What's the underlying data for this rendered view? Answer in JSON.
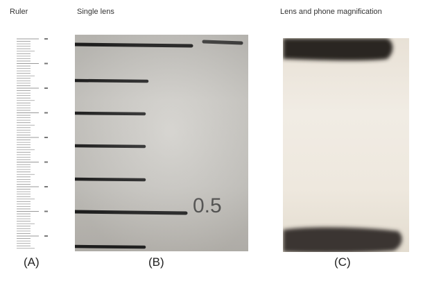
{
  "titles": {
    "a": "Ruler",
    "b": "Single lens",
    "c": "Lens and phone magnification"
  },
  "captions": {
    "a": "(A)",
    "b": "(B)",
    "c": "(C)"
  },
  "panel_b": {
    "scale_label": "0.5"
  },
  "colors": {
    "ink": "#1d1d1d",
    "paper_b": "#cbc9c4",
    "paper_c": "#eee8de"
  }
}
